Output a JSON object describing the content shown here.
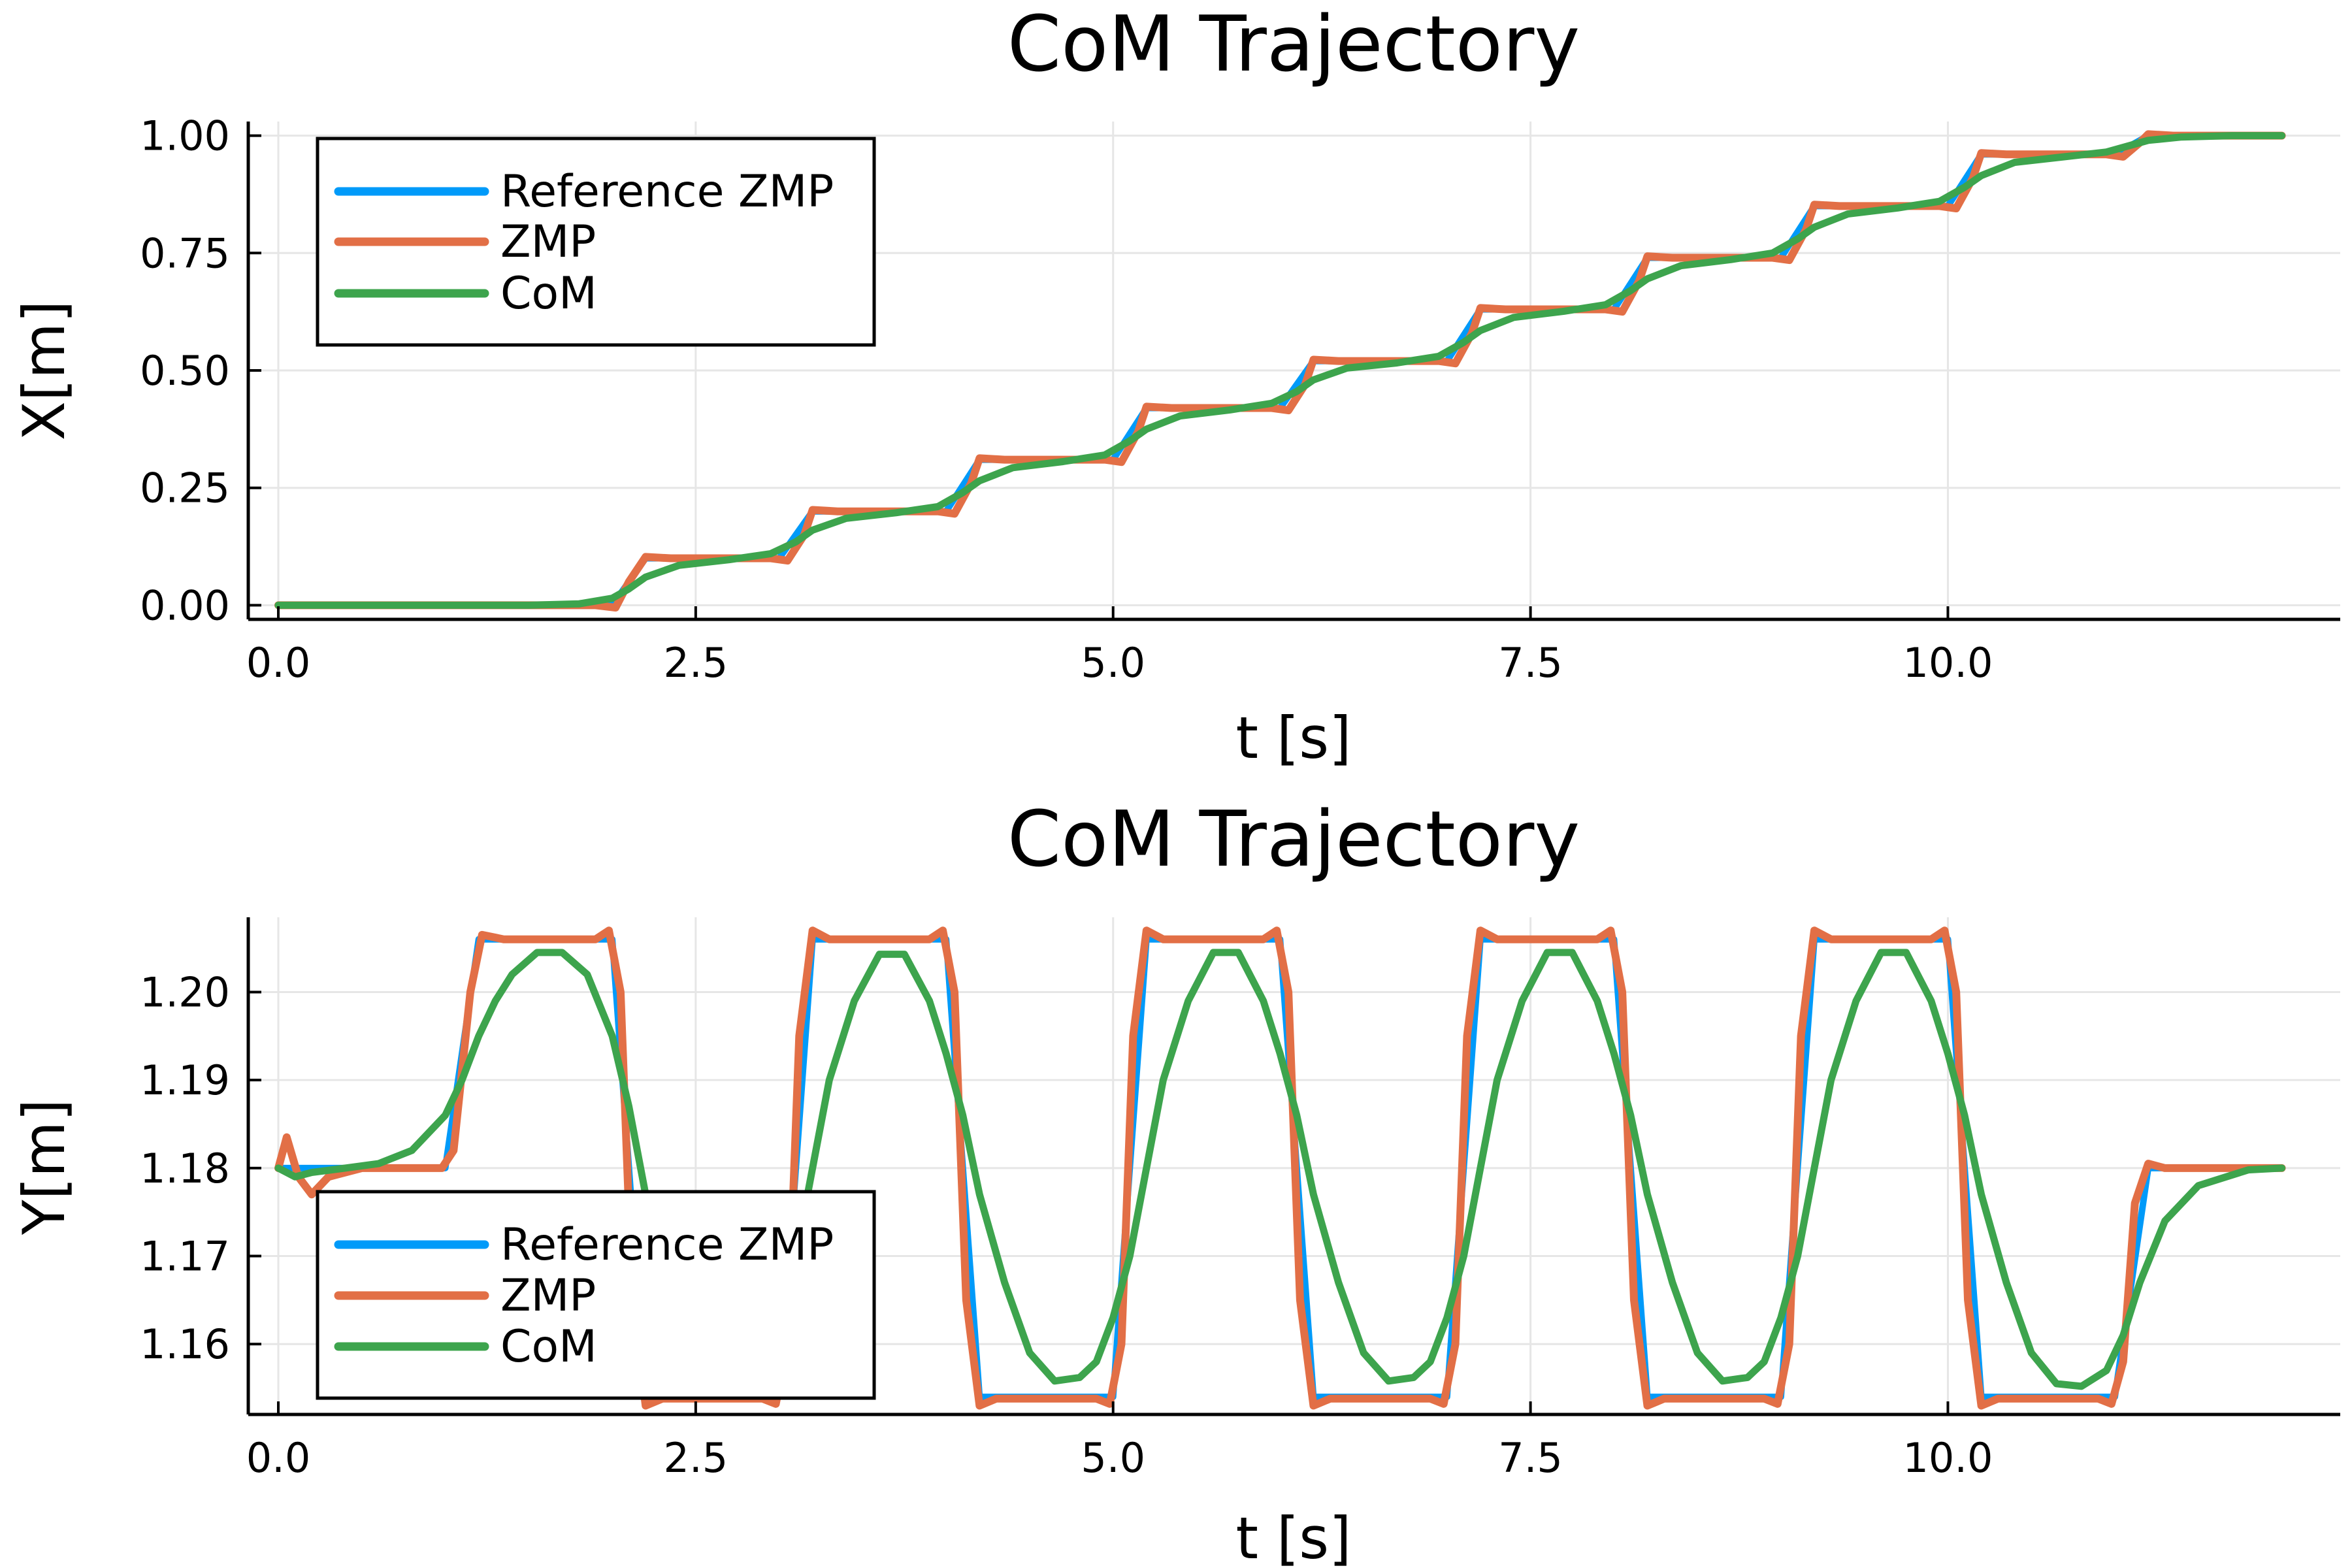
{
  "colors": {
    "reference_zmp": "#009af9",
    "zmp": "#e26f46",
    "com": "#3da44d"
  },
  "chart_data": [
    {
      "type": "line",
      "title": "CoM Trajectory",
      "xlabel": "t [s]",
      "ylabel": "X[m]",
      "xlim": [
        -0.18,
        12.35
      ],
      "ylim": [
        -0.03,
        1.03
      ],
      "xticks": [
        0.0,
        2.5,
        5.0,
        7.5,
        10.0
      ],
      "xtick_labels": [
        "0.0",
        "2.5",
        "5.0",
        "7.5",
        "10.0"
      ],
      "yticks": [
        0.0,
        0.25,
        0.5,
        0.75,
        1.0
      ],
      "ytick_labels": [
        "0.00",
        "0.25",
        "0.50",
        "0.75",
        "1.00"
      ],
      "grid": true,
      "legend_position": "top-left",
      "series": [
        {
          "name": "Reference ZMP",
          "x": [
            0.0,
            2.0,
            2.2,
            3.0,
            3.2,
            4.0,
            4.2,
            5.0,
            5.2,
            6.0,
            6.2,
            7.0,
            7.2,
            8.0,
            8.2,
            9.0,
            9.2,
            10.0,
            10.2,
            11.0,
            11.2,
            12.0
          ],
          "values": [
            0.0,
            0.0,
            0.1,
            0.1,
            0.2,
            0.2,
            0.31,
            0.31,
            0.42,
            0.42,
            0.52,
            0.52,
            0.63,
            0.63,
            0.74,
            0.74,
            0.85,
            0.85,
            0.96,
            0.96,
            1.0,
            1.0
          ]
        },
        {
          "name": "ZMP",
          "x": [
            0.0,
            1.9,
            2.02,
            2.1,
            2.2,
            2.35,
            2.95,
            3.05,
            3.15,
            3.2,
            3.35,
            3.95,
            4.05,
            4.15,
            4.2,
            4.35,
            4.95,
            5.05,
            5.15,
            5.2,
            5.35,
            5.95,
            6.05,
            6.15,
            6.2,
            6.35,
            6.95,
            7.05,
            7.15,
            7.2,
            7.35,
            7.95,
            8.05,
            8.15,
            8.2,
            8.35,
            8.95,
            9.05,
            9.15,
            9.2,
            9.35,
            9.95,
            10.05,
            10.15,
            10.2,
            10.35,
            10.95,
            11.05,
            11.15,
            11.2,
            11.35,
            12.0
          ],
          "values": [
            0.0,
            0.0,
            -0.005,
            0.05,
            0.103,
            0.1,
            0.1,
            0.095,
            0.15,
            0.203,
            0.2,
            0.2,
            0.195,
            0.26,
            0.313,
            0.31,
            0.31,
            0.305,
            0.37,
            0.423,
            0.42,
            0.42,
            0.415,
            0.47,
            0.523,
            0.52,
            0.52,
            0.515,
            0.58,
            0.633,
            0.63,
            0.63,
            0.625,
            0.69,
            0.743,
            0.74,
            0.74,
            0.735,
            0.8,
            0.853,
            0.85,
            0.85,
            0.845,
            0.91,
            0.963,
            0.96,
            0.96,
            0.955,
            0.985,
            1.003,
            1.0,
            1.0
          ]
        },
        {
          "name": "CoM",
          "x": [
            0.0,
            1.5,
            1.8,
            2.0,
            2.1,
            2.2,
            2.4,
            2.7,
            2.95,
            3.1,
            3.2,
            3.4,
            3.7,
            3.95,
            4.1,
            4.2,
            4.4,
            4.7,
            4.95,
            5.1,
            5.2,
            5.4,
            5.7,
            5.95,
            6.1,
            6.2,
            6.4,
            6.7,
            6.95,
            7.1,
            7.2,
            7.4,
            7.7,
            7.95,
            8.1,
            8.2,
            8.4,
            8.7,
            8.95,
            9.1,
            9.2,
            9.4,
            9.7,
            9.95,
            10.1,
            10.2,
            10.4,
            10.7,
            10.95,
            11.1,
            11.2,
            11.4,
            11.7,
            12.0
          ],
          "values": [
            0.0,
            0.0,
            0.003,
            0.015,
            0.035,
            0.06,
            0.085,
            0.097,
            0.11,
            0.135,
            0.16,
            0.185,
            0.197,
            0.21,
            0.24,
            0.265,
            0.293,
            0.306,
            0.32,
            0.35,
            0.375,
            0.403,
            0.416,
            0.43,
            0.455,
            0.48,
            0.505,
            0.516,
            0.53,
            0.56,
            0.585,
            0.613,
            0.626,
            0.64,
            0.67,
            0.695,
            0.723,
            0.736,
            0.75,
            0.78,
            0.805,
            0.833,
            0.846,
            0.86,
            0.89,
            0.915,
            0.943,
            0.955,
            0.965,
            0.98,
            0.99,
            0.997,
            1.0,
            1.0
          ]
        }
      ]
    },
    {
      "type": "line",
      "title": "CoM Trajectory",
      "xlabel": "t [s]",
      "ylabel": "Y[m]",
      "xlim": [
        -0.18,
        12.35
      ],
      "ylim": [
        1.152,
        1.2085
      ],
      "xticks": [
        0.0,
        2.5,
        5.0,
        7.5,
        10.0
      ],
      "xtick_labels": [
        "0.0",
        "2.5",
        "5.0",
        "7.5",
        "10.0"
      ],
      "yticks": [
        1.16,
        1.17,
        1.18,
        1.19,
        1.2
      ],
      "ytick_labels": [
        "1.16",
        "1.17",
        "1.18",
        "1.19",
        "1.20"
      ],
      "grid": true,
      "legend_position": "bottom-left",
      "series": [
        {
          "name": "Reference ZMP",
          "x": [
            0.0,
            1.0,
            1.2,
            2.0,
            2.2,
            3.0,
            3.2,
            4.0,
            4.2,
            5.0,
            5.2,
            6.0,
            6.2,
            7.0,
            7.2,
            8.0,
            8.2,
            9.0,
            9.2,
            10.0,
            10.2,
            11.0,
            11.2,
            12.0
          ],
          "values": [
            1.18,
            1.18,
            1.206,
            1.206,
            1.154,
            1.154,
            1.206,
            1.206,
            1.154,
            1.154,
            1.206,
            1.206,
            1.154,
            1.154,
            1.206,
            1.206,
            1.154,
            1.154,
            1.206,
            1.206,
            1.154,
            1.154,
            1.18,
            1.18
          ]
        },
        {
          "name": "ZMP",
          "x": [
            0.0,
            0.05,
            0.12,
            0.2,
            0.3,
            0.5,
            0.98,
            1.05,
            1.15,
            1.22,
            1.35,
            1.9,
            1.98,
            2.05,
            2.12,
            2.2,
            2.3,
            2.9,
            2.98,
            3.05,
            3.12,
            3.2,
            3.3,
            3.9,
            3.98,
            4.05,
            4.12,
            4.2,
            4.3,
            4.9,
            4.98,
            5.05,
            5.12,
            5.2,
            5.3,
            5.9,
            5.98,
            6.05,
            6.12,
            6.2,
            6.3,
            6.9,
            6.98,
            7.05,
            7.12,
            7.2,
            7.3,
            7.9,
            7.98,
            8.05,
            8.12,
            8.2,
            8.3,
            8.9,
            8.98,
            9.05,
            9.12,
            9.2,
            9.3,
            9.9,
            9.98,
            10.05,
            10.12,
            10.2,
            10.3,
            10.9,
            10.98,
            11.05,
            11.12,
            11.2,
            11.3,
            12.0
          ],
          "values": [
            1.18,
            1.1835,
            1.179,
            1.177,
            1.179,
            1.18,
            1.18,
            1.182,
            1.2,
            1.2065,
            1.206,
            1.206,
            1.207,
            1.2,
            1.165,
            1.153,
            1.1538,
            1.1538,
            1.1532,
            1.16,
            1.195,
            1.207,
            1.206,
            1.206,
            1.207,
            1.2,
            1.165,
            1.153,
            1.1538,
            1.1538,
            1.1532,
            1.16,
            1.195,
            1.207,
            1.206,
            1.206,
            1.207,
            1.2,
            1.165,
            1.153,
            1.1538,
            1.1538,
            1.1532,
            1.16,
            1.195,
            1.207,
            1.206,
            1.206,
            1.207,
            1.2,
            1.165,
            1.153,
            1.1538,
            1.1538,
            1.1532,
            1.16,
            1.195,
            1.207,
            1.206,
            1.206,
            1.207,
            1.2,
            1.165,
            1.153,
            1.1538,
            1.1538,
            1.1532,
            1.158,
            1.176,
            1.1805,
            1.18,
            1.18
          ]
        },
        {
          "name": "CoM",
          "x": [
            0.0,
            0.1,
            0.2,
            0.4,
            0.6,
            0.8,
            1.0,
            1.1,
            1.2,
            1.3,
            1.4,
            1.55,
            1.7,
            1.85,
            2.0,
            2.1,
            2.2,
            2.35,
            2.5,
            2.65,
            2.8,
            2.9,
            3.0,
            3.1,
            3.2,
            3.3,
            3.45,
            3.6,
            3.75,
            3.9,
            4.0,
            4.1,
            4.2,
            4.35,
            4.5,
            4.65,
            4.8,
            4.9,
            5.0,
            5.1,
            5.2,
            5.3,
            5.45,
            5.6,
            5.75,
            5.9,
            6.0,
            6.1,
            6.2,
            6.35,
            6.5,
            6.65,
            6.8,
            6.9,
            7.0,
            7.1,
            7.2,
            7.3,
            7.45,
            7.6,
            7.75,
            7.9,
            8.0,
            8.1,
            8.2,
            8.35,
            8.5,
            8.65,
            8.8,
            8.9,
            9.0,
            9.1,
            9.2,
            9.3,
            9.45,
            9.6,
            9.75,
            9.9,
            10.0,
            10.1,
            10.2,
            10.35,
            10.5,
            10.65,
            10.8,
            10.95,
            11.05,
            11.15,
            11.3,
            11.5,
            11.8,
            12.0
          ],
          "values": [
            1.18,
            1.179,
            1.1795,
            1.18,
            1.1805,
            1.182,
            1.186,
            1.19,
            1.195,
            1.199,
            1.202,
            1.2045,
            1.2045,
            1.202,
            1.195,
            1.187,
            1.177,
            1.168,
            1.161,
            1.157,
            1.156,
            1.158,
            1.163,
            1.17,
            1.18,
            1.19,
            1.199,
            1.2043,
            1.2043,
            1.199,
            1.193,
            1.186,
            1.177,
            1.167,
            1.159,
            1.1558,
            1.1562,
            1.158,
            1.163,
            1.17,
            1.18,
            1.19,
            1.199,
            1.2045,
            1.2045,
            1.199,
            1.193,
            1.186,
            1.177,
            1.167,
            1.159,
            1.1558,
            1.1562,
            1.158,
            1.163,
            1.17,
            1.18,
            1.19,
            1.199,
            1.2045,
            1.2045,
            1.199,
            1.193,
            1.186,
            1.177,
            1.167,
            1.159,
            1.1558,
            1.1562,
            1.158,
            1.163,
            1.17,
            1.18,
            1.19,
            1.199,
            1.2045,
            1.2045,
            1.199,
            1.193,
            1.186,
            1.177,
            1.167,
            1.159,
            1.1555,
            1.1552,
            1.157,
            1.161,
            1.167,
            1.174,
            1.178,
            1.1798,
            1.18
          ]
        }
      ]
    }
  ]
}
